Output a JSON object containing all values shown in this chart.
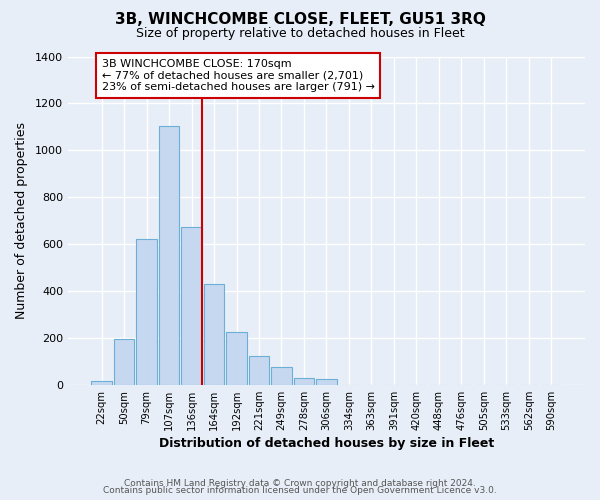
{
  "title": "3B, WINCHCOMBE CLOSE, FLEET, GU51 3RQ",
  "subtitle": "Size of property relative to detached houses in Fleet",
  "xlabel": "Distribution of detached houses by size in Fleet",
  "ylabel": "Number of detached properties",
  "bin_labels": [
    "22sqm",
    "50sqm",
    "79sqm",
    "107sqm",
    "136sqm",
    "164sqm",
    "192sqm",
    "221sqm",
    "249sqm",
    "278sqm",
    "306sqm",
    "334sqm",
    "363sqm",
    "391sqm",
    "420sqm",
    "448sqm",
    "476sqm",
    "505sqm",
    "533sqm",
    "562sqm",
    "590sqm"
  ],
  "bar_heights": [
    15,
    195,
    620,
    1105,
    675,
    430,
    225,
    125,
    75,
    30,
    25,
    0,
    0,
    0,
    0,
    0,
    0,
    0,
    0,
    0,
    0
  ],
  "bar_color": "#c5d8f0",
  "bar_edge_color": "#6baed6",
  "vline_color": "#cc0000",
  "ylim": [
    0,
    1400
  ],
  "yticks": [
    0,
    200,
    400,
    600,
    800,
    1000,
    1200,
    1400
  ],
  "annotation_title": "3B WINCHCOMBE CLOSE: 170sqm",
  "annotation_line1": "← 77% of detached houses are smaller (2,701)",
  "annotation_line2": "23% of semi-detached houses are larger (791) →",
  "annotation_box_color": "#ffffff",
  "annotation_box_edge": "#cc0000",
  "footer_line1": "Contains HM Land Registry data © Crown copyright and database right 2024.",
  "footer_line2": "Contains public sector information licensed under the Open Government Licence v3.0.",
  "bg_color": "#e8eef7",
  "plot_bg_color": "#e8eef7",
  "grid_color": "#ffffff"
}
